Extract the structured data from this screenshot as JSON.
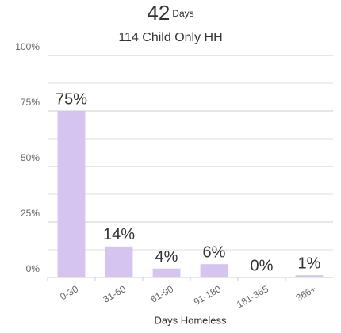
{
  "chart_data": {
    "type": "bar",
    "title": "42",
    "title_unit": "Days",
    "subtitle": "114 Child Only HH",
    "x_label": "Days Homeless",
    "categories": [
      "0-30",
      "31-60",
      "61-90",
      "91-180",
      "181-365",
      "366+"
    ],
    "values": [
      75,
      14,
      4,
      6,
      0,
      1
    ],
    "value_labels": [
      "75%",
      "14%",
      "4%",
      "6%",
      "0%",
      "1%"
    ],
    "color": "#d4c4ef",
    "ylim": [
      0,
      100
    ],
    "yticks": [
      {
        "value": 0,
        "label": "0%"
      },
      {
        "value": 25,
        "label": "25%"
      },
      {
        "value": 50,
        "label": "50%"
      },
      {
        "value": 75,
        "label": "75%"
      },
      {
        "value": 100,
        "label": "100%"
      }
    ],
    "minor_yticks": [
      12.5,
      37.5,
      62.5,
      87.5
    ],
    "grid": true
  }
}
